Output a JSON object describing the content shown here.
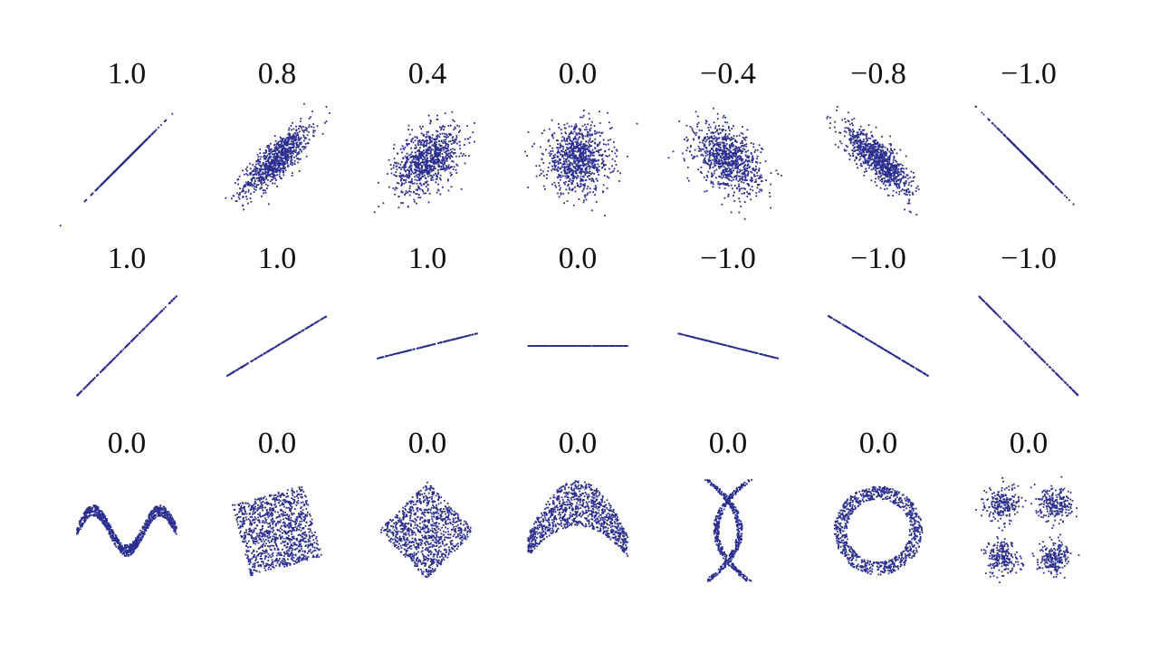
{
  "colors": {
    "points": "#2b2f8f",
    "background": "#ffffff",
    "label": "#111111"
  },
  "chart_data": {
    "type": "scatter",
    "rows": [
      {
        "panels": [
          {
            "label": "1.0",
            "kind": "gaussian",
            "correlation": 1.0
          },
          {
            "label": "0.8",
            "kind": "gaussian",
            "correlation": 0.8
          },
          {
            "label": "0.4",
            "kind": "gaussian",
            "correlation": 0.4
          },
          {
            "label": "0.0",
            "kind": "gaussian",
            "correlation": 0.0
          },
          {
            "label": "−0.4",
            "kind": "gaussian",
            "correlation": -0.4
          },
          {
            "label": "−0.8",
            "kind": "gaussian",
            "correlation": -0.8
          },
          {
            "label": "−1.0",
            "kind": "gaussian",
            "correlation": -1.0
          }
        ]
      },
      {
        "panels": [
          {
            "label": "1.0",
            "kind": "line",
            "slope": 1.0
          },
          {
            "label": "1.0",
            "kind": "line",
            "slope": 0.6
          },
          {
            "label": "1.0",
            "kind": "line",
            "slope": 0.25
          },
          {
            "label": "0.0",
            "kind": "line",
            "slope": 0.0
          },
          {
            "label": "−1.0",
            "kind": "line",
            "slope": -0.25
          },
          {
            "label": "−1.0",
            "kind": "line",
            "slope": -0.6
          },
          {
            "label": "−1.0",
            "kind": "line",
            "slope": -1.0
          }
        ]
      },
      {
        "panels": [
          {
            "label": "0.0",
            "kind": "sine"
          },
          {
            "label": "0.0",
            "kind": "rotated-square"
          },
          {
            "label": "0.0",
            "kind": "diamond"
          },
          {
            "label": "0.0",
            "kind": "parabola"
          },
          {
            "label": "0.0",
            "kind": "x-shape"
          },
          {
            "label": "0.0",
            "kind": "ring"
          },
          {
            "label": "0.0",
            "kind": "four-clusters"
          }
        ]
      }
    ]
  }
}
